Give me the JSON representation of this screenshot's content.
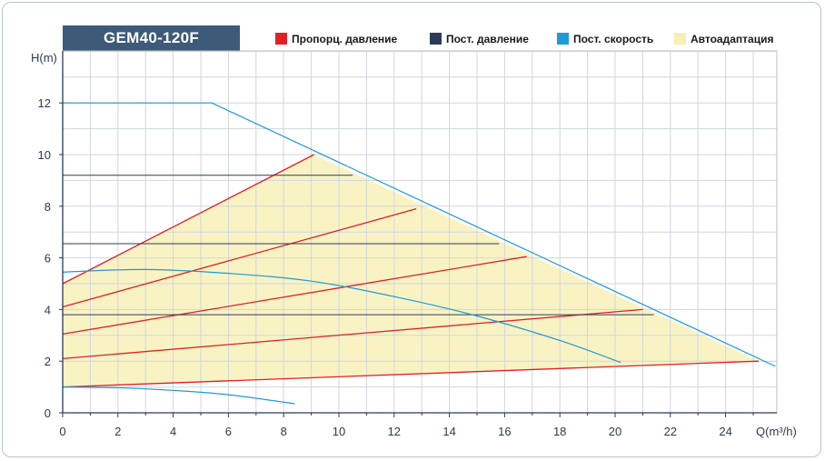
{
  "chart_data": {
    "type": "line",
    "title": "GEM40-120F",
    "xlabel": "Q(m³/h)",
    "ylabel": "H(m)",
    "xlim": [
      0,
      26
    ],
    "ylim": [
      0,
      14
    ],
    "x_ticks": [
      0,
      2,
      4,
      6,
      8,
      10,
      12,
      14,
      16,
      18,
      20,
      22,
      24
    ],
    "y_ticks": [
      0,
      2,
      4,
      6,
      8,
      10,
      12
    ],
    "grid": true,
    "legend_position": "top",
    "legend": [
      {
        "name": "Пропорц. давление",
        "color": "#e01f26"
      },
      {
        "name": "Пост. давление",
        "color": "#2e3a5c"
      },
      {
        "name": "Пост. скорость",
        "color": "#1e9ad6"
      },
      {
        "name": "Автоадаптация",
        "color": "#f7efb0"
      }
    ],
    "autoadapt_region": [
      [
        0,
        1.0
      ],
      [
        0,
        5.0
      ],
      [
        9.1,
        10.0
      ],
      [
        25.2,
        2.0
      ],
      [
        0,
        1.0
      ]
    ],
    "series": [
      {
        "name": "Пропорц. давление",
        "color": "#e01f26",
        "lines": [
          [
            [
              0,
              5.0
            ],
            [
              9.1,
              10.0
            ]
          ],
          [
            [
              0,
              4.1
            ],
            [
              12.8,
              7.9
            ]
          ],
          [
            [
              0,
              3.05
            ],
            [
              16.8,
              6.05
            ]
          ],
          [
            [
              0,
              2.1
            ],
            [
              21.0,
              4.0
            ]
          ],
          [
            [
              0,
              1.0
            ],
            [
              25.2,
              2.0
            ]
          ]
        ]
      },
      {
        "name": "Пост. давление",
        "color": "#2e3a5c",
        "lines": [
          [
            [
              0,
              9.2
            ],
            [
              10.5,
              9.2
            ]
          ],
          [
            [
              0,
              6.55
            ],
            [
              15.8,
              6.55
            ]
          ],
          [
            [
              0,
              3.8
            ],
            [
              21.4,
              3.8
            ]
          ]
        ]
      },
      {
        "name": "Пост. скорость",
        "color": "#1e9ad6",
        "lines": [
          [
            [
              0,
              12.0
            ],
            [
              5.4,
              12.0
            ],
            [
              25.8,
              1.8
            ]
          ],
          [
            [
              0,
              5.45
            ],
            [
              3,
              5.55
            ],
            [
              6,
              5.4
            ],
            [
              9,
              5.1
            ],
            [
              12,
              4.5
            ],
            [
              15,
              3.75
            ],
            [
              18,
              2.8
            ],
            [
              20.2,
              1.95
            ]
          ],
          [
            [
              0,
              1.0
            ],
            [
              2,
              0.97
            ],
            [
              4,
              0.87
            ],
            [
              6,
              0.7
            ],
            [
              8.4,
              0.35
            ]
          ]
        ]
      }
    ]
  }
}
